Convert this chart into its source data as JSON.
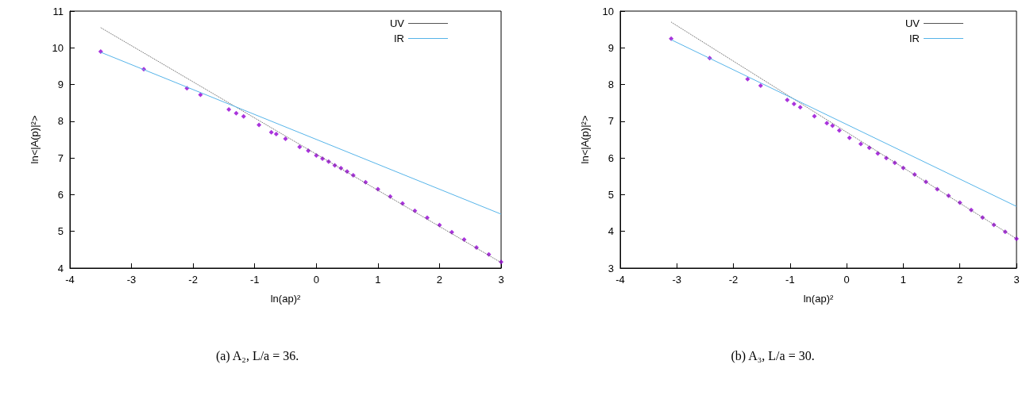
{
  "chart_data": [
    {
      "type": "scatter",
      "xlabel": "ln(ap)²",
      "ylabel": "ln<|A(p)|²>",
      "xlim": [
        -4,
        3
      ],
      "ylim": [
        4,
        11
      ],
      "xticks": [
        -4,
        -3,
        -2,
        -1,
        0,
        1,
        2,
        3
      ],
      "yticks": [
        4,
        5,
        6,
        7,
        8,
        9,
        10,
        11
      ],
      "grid": false,
      "legend": "top right",
      "annotations": [
        "(a) A₂, L/a = 36."
      ],
      "series": [
        {
          "marker": "diamond",
          "color": "#9400d3",
          "x": [
            -3.5,
            -2.8,
            -2.1,
            -1.88,
            -1.42,
            -1.3,
            -1.18,
            -0.93,
            -0.73,
            -0.65,
            -0.5,
            -0.27,
            -0.13,
            0,
            0.1,
            0.2,
            0.3,
            0.4,
            0.5,
            0.6,
            0.8,
            1.0,
            1.2,
            1.4,
            1.6,
            1.8,
            2.0,
            2.2,
            2.4,
            2.6,
            2.8,
            3.0
          ],
          "values": [
            9.9,
            9.42,
            8.9,
            8.72,
            8.32,
            8.22,
            8.13,
            7.9,
            7.7,
            7.65,
            7.52,
            7.3,
            7.2,
            7.07,
            6.98,
            6.9,
            6.8,
            6.72,
            6.63,
            6.53,
            6.34,
            6.15,
            5.95,
            5.76,
            5.56,
            5.37,
            5.17,
            4.98,
            4.78,
            4.56,
            4.37,
            4.17
          ]
        },
        {
          "type": "line",
          "name": "UV",
          "color": "#555555",
          "marker": "none",
          "line_style": "dotted",
          "x": [
            -3.5,
            3
          ],
          "values": [
            10.55,
            4.15
          ]
        },
        {
          "type": "line",
          "name": "IR",
          "color": "#56b4e9",
          "marker": "none",
          "line_style": "solid",
          "x": [
            -3.5,
            3
          ],
          "values": [
            9.88,
            5.47
          ]
        }
      ]
    },
    {
      "type": "scatter",
      "xlabel": "ln(ap)²",
      "ylabel": "ln<|A(p)|²>",
      "xlim": [
        -4,
        3
      ],
      "ylim": [
        3,
        10
      ],
      "xticks": [
        -4,
        -3,
        -2,
        -1,
        0,
        1,
        2,
        3
      ],
      "yticks": [
        3,
        4,
        5,
        6,
        7,
        8,
        9,
        10
      ],
      "grid": false,
      "legend": "top right",
      "annotations": [
        "(b) A₃, L/a = 30."
      ],
      "series": [
        {
          "marker": "diamond",
          "color": "#9400d3",
          "x": [
            -3.1,
            -2.42,
            -1.75,
            -1.52,
            -1.05,
            -0.93,
            -0.82,
            -0.57,
            -0.35,
            -0.25,
            -0.13,
            0.05,
            0.25,
            0.4,
            0.55,
            0.7,
            0.85,
            1.0,
            1.2,
            1.4,
            1.6,
            1.8,
            2.0,
            2.2,
            2.4,
            2.6,
            2.8,
            3.0
          ],
          "values": [
            9.25,
            8.72,
            8.15,
            7.97,
            7.58,
            7.47,
            7.38,
            7.14,
            6.95,
            6.88,
            6.75,
            6.55,
            6.38,
            6.28,
            6.12,
            6.0,
            5.87,
            5.73,
            5.55,
            5.35,
            5.15,
            4.97,
            4.78,
            4.58,
            4.38,
            4.18,
            3.99,
            3.8
          ]
        },
        {
          "type": "line",
          "name": "UV",
          "color": "#555555",
          "marker": "none",
          "line_style": "dotted",
          "x": [
            -3.1,
            3
          ],
          "values": [
            9.7,
            3.8
          ]
        },
        {
          "type": "line",
          "name": "IR",
          "color": "#56b4e9",
          "marker": "none",
          "line_style": "solid",
          "x": [
            -3.1,
            3
          ],
          "values": [
            9.22,
            4.68
          ]
        }
      ]
    }
  ]
}
